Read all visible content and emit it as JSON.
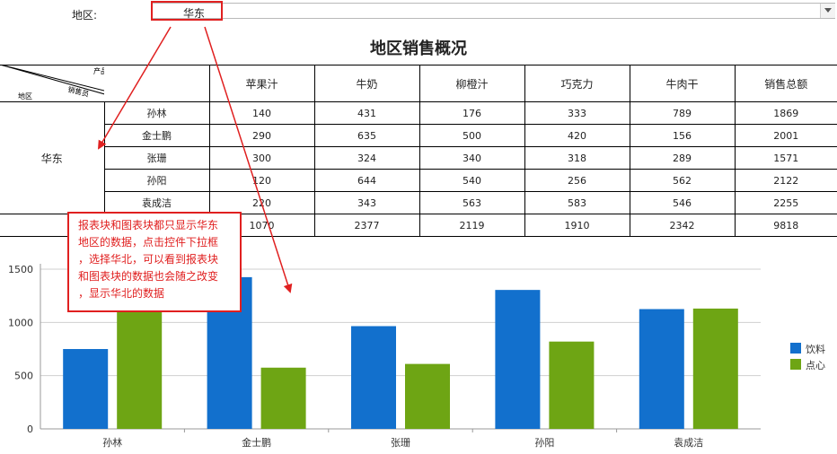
{
  "filter": {
    "label": "地区:",
    "selected": "华东",
    "dropdown_icon": "chevron-down-icon"
  },
  "report": {
    "title": "地区销售概况",
    "corner_header": {
      "top": "产品",
      "middle": "销售员",
      "bottom": "地区"
    },
    "columns": [
      "苹果汁",
      "牛奶",
      "柳橙汁",
      "巧克力",
      "牛肉干",
      "销售总额"
    ],
    "region": "华东",
    "rows": [
      {
        "name": "孙林",
        "values": [
          "140",
          "431",
          "176",
          "333",
          "789",
          "1869"
        ]
      },
      {
        "name": "金士鹏",
        "values": [
          "290",
          "635",
          "500",
          "420",
          "156",
          "2001"
        ]
      },
      {
        "name": "张珊",
        "values": [
          "300",
          "324",
          "340",
          "318",
          "289",
          "1571"
        ]
      },
      {
        "name": "孙阳",
        "values": [
          "120",
          "644",
          "540",
          "256",
          "562",
          "2122"
        ]
      },
      {
        "name": "袁成洁",
        "values": [
          "220",
          "343",
          "563",
          "583",
          "546",
          "2255"
        ]
      }
    ],
    "totals": [
      "1070",
      "2377",
      "2119",
      "1910",
      "2342",
      "9818"
    ]
  },
  "callout": {
    "lines": [
      "报表块和图表块都只显示华东",
      "地区的数据，点击控件下拉框",
      "，选择华北，可以看到报表块",
      "和图表块的数据也会随之改变",
      "，显示华北的数据"
    ],
    "color": "#e02020"
  },
  "chart_data": {
    "type": "bar",
    "categories": [
      "孙林",
      "金士鹏",
      "张珊",
      "孙阳",
      "袁成洁"
    ],
    "series": [
      {
        "name": "饮料",
        "values": [
          750,
          1425,
          965,
          1305,
          1125
        ],
        "color": "#1270cd"
      },
      {
        "name": "点心",
        "values": [
          1120,
          575,
          610,
          820,
          1130
        ],
        "color": "#6ea514"
      }
    ],
    "ylim": [
      0,
      1500
    ],
    "yticks": [
      "0",
      "500",
      "1000",
      "1500"
    ],
    "grid": true,
    "legend": "right"
  }
}
